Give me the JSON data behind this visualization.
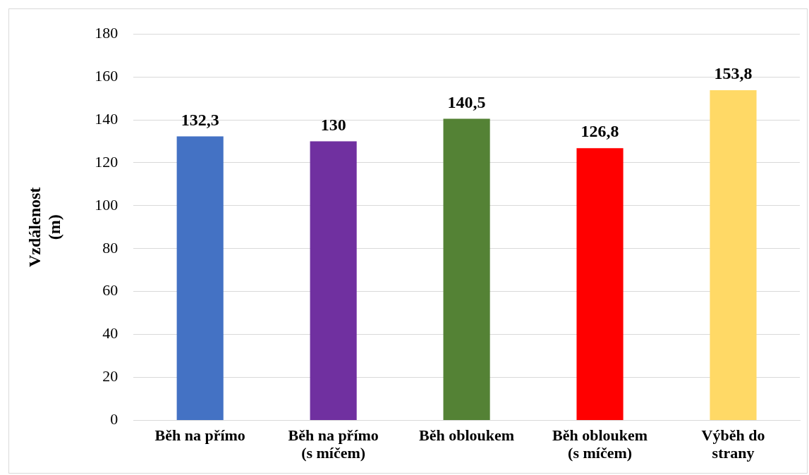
{
  "chart_data": {
    "type": "bar",
    "ylabel": "Vzdálenost\n(m)",
    "categories": [
      "Běh na přímo",
      "Běh na přímo\n(s míčem)",
      "Běh obloukem",
      "Běh obloukem\n(s míčem)",
      "Výběh do\nstrany"
    ],
    "values": [
      132.3,
      130,
      140.5,
      126.8,
      153.8
    ],
    "colors": [
      "#4472c4",
      "#7030a0",
      "#548235",
      "#ff0000",
      "#ffd966"
    ],
    "value_labels": [
      "132,3",
      "130",
      "140,5",
      "126,8",
      "153,8"
    ],
    "ylim": [
      0,
      180
    ],
    "yticks": [
      0,
      20,
      40,
      60,
      80,
      100,
      120,
      140,
      160,
      180
    ],
    "grid": "y",
    "legend": false
  }
}
